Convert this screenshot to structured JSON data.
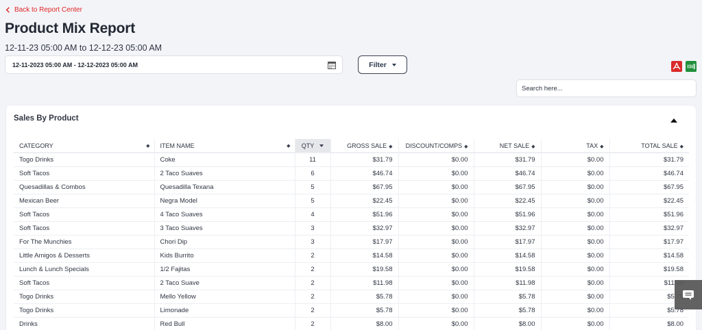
{
  "nav": {
    "back_label": "Back to Report Center"
  },
  "header": {
    "title": "Product Mix Report",
    "date_range_text": "12-11-23 05:00 AM to 12-12-23 05:00 AM"
  },
  "controls": {
    "date_input_value": "12-11-2023 05:00 AM - 12-12-2023 05:00 AM",
    "filter_label": "Filter",
    "search_placeholder": "Search here...",
    "export_pdf_icon": "pdf-icon",
    "export_csv_icon": "csv-icon",
    "calendar_icon": "calendar-icon"
  },
  "colors": {
    "accent_red": "#e02424",
    "pdf_red": "#d92b2b",
    "csv_green": "#1f8f3a"
  },
  "card": {
    "title": "Sales By Product",
    "columns": [
      "CATEGORY",
      "ITEM NAME",
      "QTY",
      "GROSS SALE",
      "DISCOUNT/COMPS",
      "NET SALE",
      "TAX",
      "TOTAL SALE"
    ],
    "rows": [
      [
        "Togo Drinks",
        "Coke",
        "11",
        "$31.79",
        "$0.00",
        "$31.79",
        "$0.00",
        "$31.79"
      ],
      [
        "Soft Tacos",
        "2 Taco Suaves",
        "6",
        "$46.74",
        "$0.00",
        "$46.74",
        "$0.00",
        "$46.74"
      ],
      [
        "Quesadillas & Combos",
        "Quesadilla Texana",
        "5",
        "$67.95",
        "$0.00",
        "$67.95",
        "$0.00",
        "$67.95"
      ],
      [
        "Mexican Beer",
        "Negra Model",
        "5",
        "$22.45",
        "$0.00",
        "$22.45",
        "$0.00",
        "$22.45"
      ],
      [
        "Soft Tacos",
        "4 Taco Suaves",
        "4",
        "$51.96",
        "$0.00",
        "$51.96",
        "$0.00",
        "$51.96"
      ],
      [
        "Soft Tacos",
        "3 Taco Suaves",
        "3",
        "$32.97",
        "$0.00",
        "$32.97",
        "$0.00",
        "$32.97"
      ],
      [
        "For The Munchies",
        "Chori Dip",
        "3",
        "$17.97",
        "$0.00",
        "$17.97",
        "$0.00",
        "$17.97"
      ],
      [
        "Little Amigos & Desserts",
        "Kids Burrito",
        "2",
        "$14.58",
        "$0.00",
        "$14.58",
        "$0.00",
        "$14.58"
      ],
      [
        "Lunch & Lunch Specials",
        "1/2 Fajitas",
        "2",
        "$19.58",
        "$0.00",
        "$19.58",
        "$0.00",
        "$19.58"
      ],
      [
        "Soft Tacos",
        "2 Taco Suave",
        "2",
        "$11.98",
        "$0.00",
        "$11.98",
        "$0.00",
        "$11.98"
      ],
      [
        "Togo Drinks",
        "Mello Yellow",
        "2",
        "$5.78",
        "$0.00",
        "$5.78",
        "$0.00",
        "$5.78"
      ],
      [
        "Togo Drinks",
        "Limonade",
        "2",
        "$5.78",
        "$0.00",
        "$5.78",
        "$0.00",
        "$5.78"
      ],
      [
        "Drinks",
        "Red Bull",
        "2",
        "$8.00",
        "$0.00",
        "$8.00",
        "$0.00",
        "$8.00"
      ]
    ]
  }
}
